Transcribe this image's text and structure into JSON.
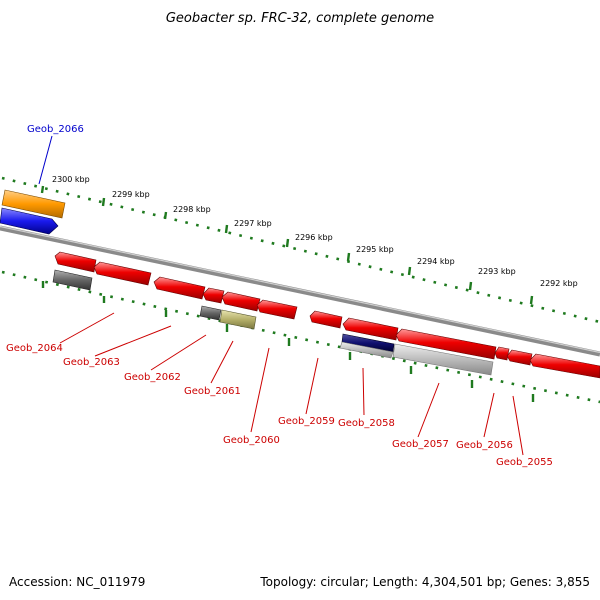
{
  "title": "Geobacter sp. FRC-32, complete genome",
  "footer": {
    "accession": "Accession: NC_011979",
    "topology": "Topology: circular; Length: 4,304,501 bp; Genes: 3,855"
  },
  "colors": {
    "backbone": "#8a8a8a",
    "tick_dots": "#1f7a1f",
    "label_red": "#cc0000",
    "label_blue": "#0000cc",
    "gene_red": "#ee0000",
    "gene_orange": "#ff9900",
    "gene_blue": "#1a1aee",
    "gene_dark_gray": "#666666",
    "gene_light_gray": "#bbbbbb",
    "gene_olive": "#b5b06a",
    "gene_navy": "#101070"
  },
  "ticks": [
    "2300 kbp",
    "2299 kbp",
    "2298 kbp",
    "2297 kbp",
    "2296 kbp",
    "2295 kbp",
    "2294 kbp",
    "2293 kbp",
    "2292 kbp"
  ],
  "labels": {
    "geob_2066": "Geob_2066",
    "geob_2064": "Geob_2064",
    "geob_2063": "Geob_2063",
    "geob_2062": "Geob_2062",
    "geob_2061": "Geob_2061",
    "geob_2060": "Geob_2060",
    "geob_2059": "Geob_2059",
    "geob_2058": "Geob_2058",
    "geob_2057": "Geob_2057",
    "geob_2056": "Geob_2056",
    "geob_2055": "Geob_2055"
  }
}
